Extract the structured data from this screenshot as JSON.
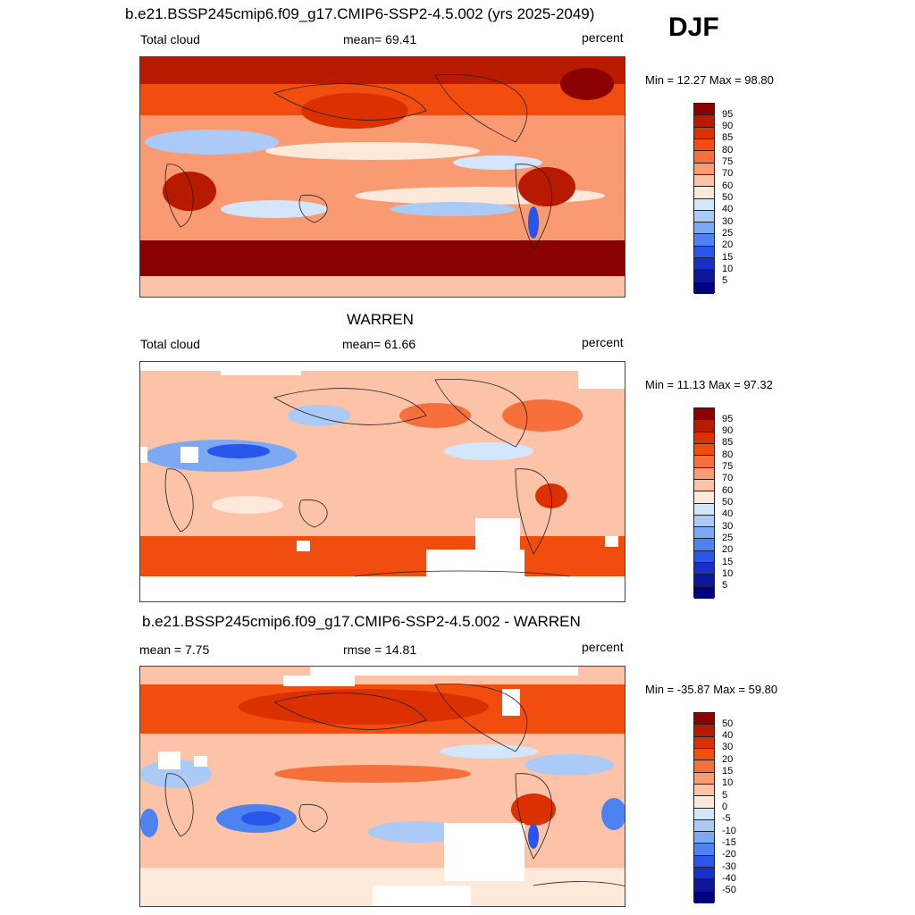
{
  "season": "DJF",
  "panels": [
    {
      "title": "b.e21.BSSP245cmip6.f09_g17.CMIP6-SSP2-4.5.002 (yrs 2025-2049)",
      "left_label": "Total cloud",
      "center_label": "mean=  69.41",
      "right_label": "percent",
      "minmax": "Min =  12.27 Max =  98.80",
      "colorbar_labels": [
        "95",
        "90",
        "85",
        "80",
        "75",
        "70",
        "60",
        "50",
        "40",
        "30",
        "25",
        "20",
        "15",
        "10",
        "5"
      ],
      "colorbar_colors": [
        "#8b0000",
        "#b81a00",
        "#dc3000",
        "#f04d0e",
        "#f76f3a",
        "#f99a72",
        "#fcc3a8",
        "#fde8d9",
        "#d4e6fb",
        "#abcaf6",
        "#7da9f2",
        "#4d82f0",
        "#2855ea",
        "#1830c8",
        "#0b1699",
        "#000080"
      ],
      "map_data": {
        "dataset": "b.e21.BSSP245cmip6.f09_g17.CMIP6-SSP2-4.5.002",
        "field": "Total cloud",
        "units": "percent",
        "mean": 69.41,
        "min": 12.27,
        "max": 98.8
      }
    },
    {
      "title": "WARREN",
      "left_label": "Total cloud",
      "center_label": "mean=  61.66",
      "right_label": "percent",
      "minmax": "Min =  11.13 Max =  97.32",
      "colorbar_labels": [
        "95",
        "90",
        "85",
        "80",
        "75",
        "70",
        "60",
        "50",
        "40",
        "30",
        "25",
        "20",
        "15",
        "10",
        "5"
      ],
      "colorbar_colors": [
        "#8b0000",
        "#b81a00",
        "#dc3000",
        "#f04d0e",
        "#f76f3a",
        "#f99a72",
        "#fcc3a8",
        "#fde8d9",
        "#d4e6fb",
        "#abcaf6",
        "#7da9f2",
        "#4d82f0",
        "#2855ea",
        "#1830c8",
        "#0b1699",
        "#000080"
      ],
      "map_data": {
        "dataset": "WARREN",
        "field": "Total cloud",
        "units": "percent",
        "mean": 61.66,
        "min": 11.13,
        "max": 97.32
      }
    },
    {
      "title": "b.e21.BSSP245cmip6.f09_g17.CMIP6-SSP2-4.5.002 - WARREN",
      "left_label": "mean =   7.75",
      "center_label": "rmse =  14.81",
      "right_label": "percent",
      "minmax": "Min = -35.87 Max =  59.80",
      "colorbar_labels": [
        "50",
        "40",
        "30",
        "20",
        "15",
        "10",
        "5",
        "0",
        "-5",
        "-10",
        "-15",
        "-20",
        "-30",
        "-40",
        "-50"
      ],
      "colorbar_colors": [
        "#8b0000",
        "#b81a00",
        "#dc3000",
        "#f04d0e",
        "#f76f3a",
        "#f99a72",
        "#fcc3a8",
        "#fde8d9",
        "#d4e6fb",
        "#abcaf6",
        "#7da9f2",
        "#4d82f0",
        "#2855ea",
        "#1830c8",
        "#0b1699",
        "#000080"
      ],
      "map_data": {
        "dataset": "b.e21.BSSP245cmip6.f09_g17.CMIP6-SSP2-4.5.002 - WARREN",
        "field": "difference",
        "units": "percent",
        "mean": 7.75,
        "rmse": 14.81,
        "min": -35.87,
        "max": 59.8
      }
    }
  ]
}
